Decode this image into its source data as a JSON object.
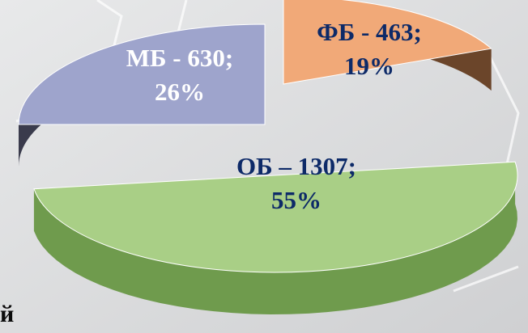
{
  "chart_data": {
    "type": "pie",
    "title": "",
    "slices": [
      {
        "label_line1": "ОБ – 1307;",
        "label_line2": "55%",
        "value": 1307,
        "percent": 55,
        "color": "#a9cf86",
        "side_color": "#6f9b4d",
        "text_color": "#0d2a68"
      },
      {
        "label_line1": "МБ - 630;",
        "label_line2": "26%",
        "value": 630,
        "percent": 26,
        "color": "#9ea4cc",
        "side_color": "#3a3b4c",
        "text_color": "#ffffff"
      },
      {
        "label_line1": "ФБ - 463;",
        "label_line2": "19%",
        "value": 463,
        "percent": 19,
        "color": "#f1a978",
        "side_color": "#6b452a",
        "text_color": "#0d2a68"
      }
    ]
  },
  "stray_text": "й"
}
